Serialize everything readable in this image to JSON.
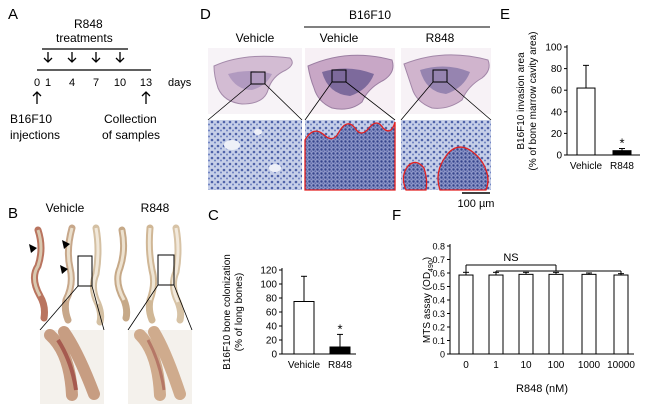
{
  "panels": {
    "A": {
      "letter": "A",
      "treatments_label": "R848",
      "treatments_label2": "treatments",
      "ticks": [
        "0",
        "1",
        "4",
        "7",
        "10",
        "13"
      ],
      "unit": "days",
      "injections_1": "B16F10",
      "injections_2": "injections",
      "collection_1": "Collection",
      "collection_2": "of samples"
    },
    "B": {
      "letter": "B",
      "vehicle_label": "Vehicle",
      "r848_label": "R848"
    },
    "C": {
      "letter": "C",
      "star": "*"
    },
    "D": {
      "letter": "D",
      "vehicle_label": "Vehicle",
      "group_label": "B16F10",
      "group_vehicle_label": "Vehicle",
      "group_r848_label": "R848",
      "scalebar": "100 µm"
    },
    "E": {
      "letter": "E",
      "star": "*"
    },
    "F": {
      "letter": "F",
      "ns": "NS"
    }
  },
  "chart_data": [
    {
      "panel": "C",
      "type": "bar",
      "categories": [
        "Vehicle",
        "R848"
      ],
      "values": [
        75,
        10
      ],
      "errors": [
        36,
        18
      ],
      "bar_colors": [
        "#ffffff",
        "#000000"
      ],
      "ylabel_lines": [
        "B16F10 bone colonization",
        "(% of long bones)"
      ],
      "ylim": [
        0,
        120
      ],
      "yticks": [
        "0",
        "20",
        "40",
        "60",
        "80",
        "100",
        "120"
      ],
      "significance": [
        "",
        "*"
      ]
    },
    {
      "panel": "E",
      "type": "bar",
      "categories": [
        "Vehicle",
        "R848"
      ],
      "values": [
        62,
        4
      ],
      "errors": [
        21,
        2
      ],
      "bar_colors": [
        "#ffffff",
        "#000000"
      ],
      "ylabel_lines": [
        "B16F10 invasion area",
        "(% of bone marrow cavity area)"
      ],
      "ylim": [
        0,
        100
      ],
      "yticks": [
        "0",
        "20",
        "40",
        "60",
        "80",
        "100"
      ],
      "significance": [
        "",
        "*"
      ]
    },
    {
      "panel": "F",
      "type": "bar",
      "categories": [
        "0",
        "1",
        "10",
        "100",
        "1000",
        "10000"
      ],
      "values": [
        0.585,
        0.585,
        0.59,
        0.59,
        0.59,
        0.585
      ],
      "errors": [
        0.02,
        0.02,
        0.015,
        0.015,
        0.01,
        0.01
      ],
      "bar_colors": [
        "#ffffff",
        "#ffffff",
        "#ffffff",
        "#ffffff",
        "#ffffff",
        "#ffffff"
      ],
      "ylabel_lines": [
        "MTS assay (OD",
        "490",
        ")"
      ],
      "xlabel": "R848 (nM)",
      "ylim": [
        0,
        0.8
      ],
      "yticks": [
        "0",
        "0.1",
        "0.2",
        "0.3",
        "0.4",
        "0.5",
        "0.6",
        "0.7",
        "0.8"
      ]
    }
  ],
  "colors": {
    "histo_pink": "#d7c4d6",
    "histo_purple": "#8a6f98",
    "micro_blue": "#7f97c8",
    "tumor_outline": "#e32020",
    "bone_tan": "#c9b08f",
    "bone_red": "#a65a4f"
  }
}
